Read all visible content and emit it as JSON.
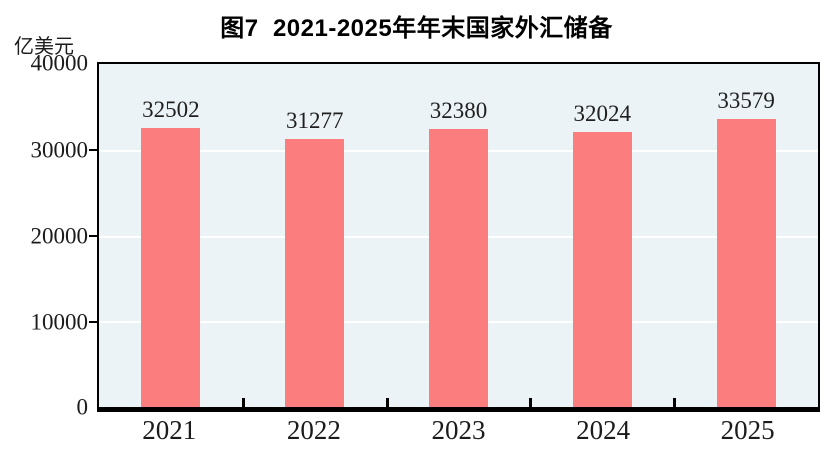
{
  "header": {
    "title": "图7  2021-2025年年末国家外汇储备"
  },
  "chart_data": {
    "type": "bar",
    "title": "图7  2021-2025年年末国家外汇储备",
    "unit_label": "亿美元",
    "ylabel": "亿美元",
    "xlabel": "",
    "categories": [
      "2021",
      "2022",
      "2023",
      "2024",
      "2025"
    ],
    "values": [
      32502,
      31277,
      32380,
      32024,
      33579
    ],
    "value_labels": [
      "32502",
      "31277",
      "32380",
      "32024",
      "33579"
    ],
    "ylim": [
      0,
      40000
    ],
    "yticks": [
      "0",
      "10000",
      "20000",
      "30000",
      "40000"
    ],
    "grid": true,
    "legend": false,
    "colors": {
      "bar": "#fc7d7d",
      "plot_background": "#ecf3f7",
      "gridline": "#ffffff",
      "axis": "#000000"
    }
  }
}
